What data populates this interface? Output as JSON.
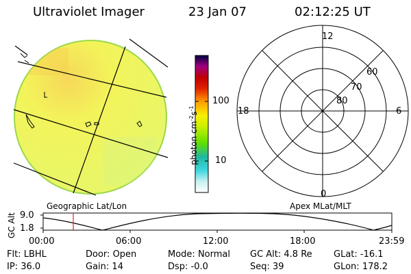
{
  "header": {
    "title": "Ultraviolet Imager",
    "date": "23 Jan 07",
    "time": "02:12:25 UT"
  },
  "left_label": "Geographic Lat/Lon",
  "right_label": "Apex MLat/MLT",
  "colorbar": {
    "unit_main": "photon cm",
    "unit_exp1": "-2",
    "unit_s": "s",
    "unit_exp2": "-1",
    "tick_high": "100",
    "tick_low": "10"
  },
  "polar": {
    "mlt_top": "12",
    "mlt_left": "18",
    "mlt_right": "6",
    "mlt_bottom": "0",
    "lat_60": "60",
    "lat_70": "70",
    "lat_80": "80"
  },
  "altitude_plot": {
    "ylabel": "GC Alt",
    "ytick_high": "9.0",
    "ytick_low": "1.8",
    "xticks": [
      "00:00",
      "06:00",
      "12:00",
      "18:00",
      "23:59"
    ]
  },
  "status": {
    "filter_label": "Flt:",
    "filter_value": "LBHL",
    "ip_label": "IP:",
    "ip_value": "36.0",
    "door_label": "Door:",
    "door_value": "Open",
    "gain_label": "Gain:",
    "gain_value": "14",
    "mode_label": "Mode:",
    "mode_value": "Normal",
    "dsp_label": "Dsp:",
    "dsp_value": "-0.0",
    "gcalt_label": "GC Alt:",
    "gcalt_value": "4.8 Re",
    "seq_label": "Seq:",
    "seq_value": "39",
    "glat_label": "GLat:",
    "glat_value": "-16.1",
    "glon_label": "GLon:",
    "glon_value": "178.2"
  },
  "colors": {
    "disk_fill": "#f2f55a",
    "disk_edge": "#9bd84a",
    "marker": "#e02020"
  }
}
